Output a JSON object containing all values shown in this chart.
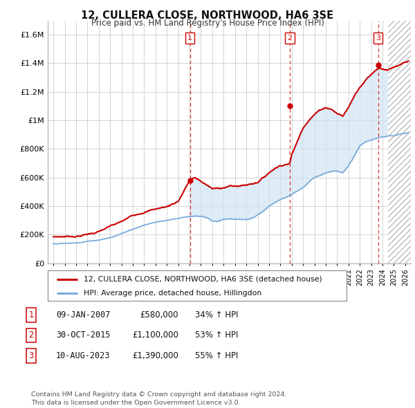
{
  "title": "12, CULLERA CLOSE, NORTHWOOD, HA6 3SE",
  "subtitle": "Price paid vs. HM Land Registry's House Price Index (HPI)",
  "ylabel_ticks": [
    "£0",
    "£200K",
    "£400K",
    "£600K",
    "£800K",
    "£1M",
    "£1.2M",
    "£1.4M",
    "£1.6M"
  ],
  "ytick_values": [
    0,
    200000,
    400000,
    600000,
    800000,
    1000000,
    1200000,
    1400000,
    1600000
  ],
  "ylim": [
    0,
    1700000
  ],
  "xlim_start": 1994.5,
  "xlim_end": 2026.5,
  "red_line_color": "#cc0000",
  "blue_line_color": "#7aabdc",
  "blue_fill_color": "#d0e4f5",
  "vline_color": "#dd3333",
  "purchase_dates": [
    2007.03,
    2015.83,
    2023.61
  ],
  "purchase_prices": [
    580000,
    1100000,
    1390000
  ],
  "purchase_labels": [
    "1",
    "2",
    "3"
  ],
  "legend_line1": "12, CULLERA CLOSE, NORTHWOOD, HA6 3SE (detached house)",
  "legend_line2": "HPI: Average price, detached house, Hillingdon",
  "table_rows": [
    [
      "1",
      "09-JAN-2007",
      "£580,000",
      "34% ↑ HPI"
    ],
    [
      "2",
      "30-OCT-2015",
      "£1,100,000",
      "53% ↑ HPI"
    ],
    [
      "3",
      "10-AUG-2023",
      "£1,390,000",
      "55% ↑ HPI"
    ]
  ],
  "footer": "Contains HM Land Registry data © Crown copyright and database right 2024.\nThis data is licensed under the Open Government Licence v3.0.",
  "background_color": "#ffffff",
  "grid_color": "#cccccc",
  "hatch_start": 2024.5
}
